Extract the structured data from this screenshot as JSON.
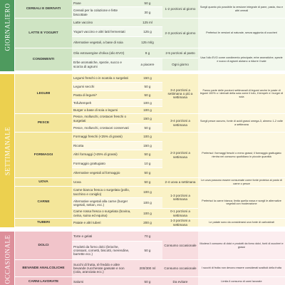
{
  "sections": [
    {
      "label": "GIORNALIERO",
      "groups": [
        {
          "category": "CEREALI E DERIVATI",
          "frequency": "1-2 porzioni al giorno",
          "note": "Scegli quanto più possibile la versione integrale di pane, pasta, riso e altri cereali",
          "items": [
            {
              "food": "Pane",
              "portion": "50 g"
            },
            {
              "food": "Cereali per la colazione e fette biscottate",
              "portion": "30 g"
            }
          ]
        },
        {
          "category": "LATTE E YOGURT",
          "frequency": "2-3 porzioni al giorno",
          "note": "Preferisci le versioni al naturale, senza aggiunta di zuccheri",
          "items": [
            {
              "food": "Latte vaccino",
              "portion": "125 ml"
            },
            {
              "food": "Yogurt vaccino e altri latti fermentati",
              "portion": "125 g"
            },
            {
              "food": "Alternative vegetali, a base di soia",
              "portion": "125 ml/g"
            }
          ]
        },
        {
          "category": "CONDIMENTI",
          "note": "Usa l'olio EVO come condimento principale; erbe aromatiche, spezie e succo di agrumi aiutano a ridurre il sale",
          "items": [
            {
              "food": "Olio extravergine d'oliva (olio EVO)",
              "portion": "9 g",
              "frequency": "2-5 porzioni al pasto"
            },
            {
              "food": "Erbe aromatiche, spezie, succo e scorza di agrumi",
              "portion": "a piacere",
              "frequency": "Ogni giorno"
            }
          ]
        }
      ]
    },
    {
      "label": "SETTIMANALE",
      "groups": [
        {
          "category": "LEGUMI",
          "frequency": "3-4 porzioni a settimana o più a settimana",
          "note": "Fanno parte delle porzioni settimanali di legumi anche le paste di legumi 100% o i derivati della soia come il tofu, il tempeh e i burger di soia",
          "items": [
            {
              "food": "Legumi freschi o in scatola o surgelati",
              "portion": "150 g"
            },
            {
              "food": "Legumi secchi",
              "portion": "50 g"
            },
            {
              "food": "Pasta di legumi*",
              "portion": "50 g"
            },
            {
              "food": "Tofu/tempeh",
              "portion": "100 g"
            },
            {
              "food": "Burger a base di soia o legumi",
              "portion": "100 g"
            }
          ]
        },
        {
          "category": "PESCE",
          "frequency": "3-4 porzioni a settimana",
          "note": "Scegli pesce azzurro, fonte di acidi grassi omega-3, almeno 1-2 volte a settimana",
          "items": [
            {
              "food": "Pesce, molluschi, crostacei freschi o surgelati",
              "portion": "150 g"
            },
            {
              "food": "Pesce, molluschi, crostacei conservati",
              "portion": "50 g"
            }
          ]
        },
        {
          "category": "FORMAGGI",
          "frequency": "2-3 porzioni a settimana",
          "note": "Preferisci i formaggi freschi o meno grassi; il formaggio grattugiato rientra nel consumo quotidiano in piccole quantità",
          "items": [
            {
              "food": "Formaggi freschi (<25% di grassi)",
              "portion": "100 g"
            },
            {
              "food": "Ricotta",
              "portion": "150 g"
            },
            {
              "food": "Altri formaggi (>25% di grassi)",
              "portion": "50 g"
            },
            {
              "food": "Formaggio grattugiato",
              "portion": "10 g"
            },
            {
              "food": "Alternative vegetali al formaggio",
              "portion": "50 g"
            }
          ]
        },
        {
          "category": "UOVA",
          "frequency": "2-4 uova a settimana",
          "note": "Le uova possono essere consumate come fonte proteica al posto di carne o pesce",
          "items": [
            {
              "food": "Uova",
              "portion": "50 g"
            }
          ]
        },
        {
          "category": "CARNE",
          "note": "Preferisci la carne bianca; limita quella rossa e scegli le alternative vegetali con moderazione",
          "items": [
            {
              "food": "Carne bianca fresca o surgelata (pollo, tacchino e coniglio)",
              "portion": "100 g",
              "frequency": "1-3 porzioni a settimana"
            },
            {
              "food": "Alternative vegetali alla carne (burger vegetali, seitan, ecc.)",
              "portion": "100 g"
            },
            {
              "food": "Carne rossa fresca o surgelata (bovina, ovina, suina ed equina)",
              "portion": "100 g",
              "frequency": "0-1 porzioni a settimana"
            }
          ]
        },
        {
          "category": "TUBERI",
          "frequency": "1-3 porzioni a settimana",
          "note": "Le patate sono da considerarsi una fonte di carboidrati",
          "items": [
            {
              "food": "Patate e altri tuberi",
              "portion": "200 g"
            }
          ]
        }
      ]
    },
    {
      "label": "OCCASIONALE",
      "groups": [
        {
          "category": "DOLCI",
          "frequency": "Consumo occasionale",
          "note": "Modera il consumo di dolci e prodotti da forno dolci, fonti di zuccheri e grassi",
          "items": [
            {
              "food": "Torte e gelati",
              "portion": "70 g"
            },
            {
              "food": "Prodotti da forno dolci (brioche, croissant, cornetti, biscotti, merendine, barrette ecc.)",
              "portion": "50 g"
            }
          ]
        },
        {
          "category": "BEVANDE ANALCOLICHE",
          "frequency": "Consumo occasionale",
          "note": "I succhi di frutta non devono essere considerati sostituti della frutta",
          "items": [
            {
              "food": "Succhi di frutta, tè freddo e altre bevande zuccherate gassate e non (cola, aranciata ecc.)",
              "portion": "200/300 ml"
            }
          ]
        },
        {
          "category": "CARNI LAVORATE",
          "frequency": "Da evitare",
          "note": "Limita il consumo di carni lavorate",
          "items": [
            {
              "food": "Salumi",
              "portion": "50 g"
            }
          ]
        }
      ]
    }
  ]
}
